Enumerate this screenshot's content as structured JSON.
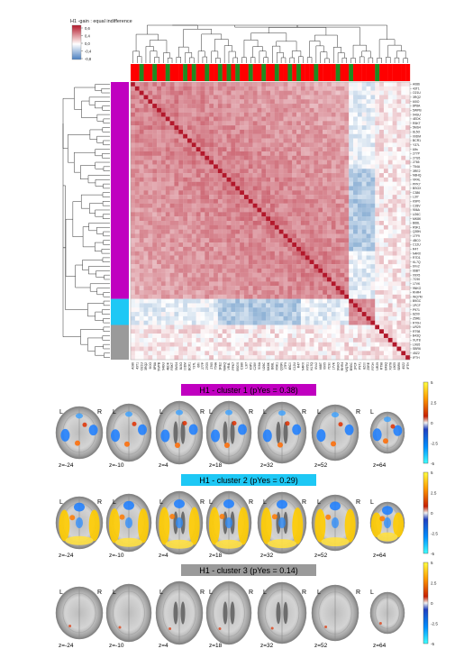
{
  "legend": {
    "title": "H1 -gain : equal indifference",
    "ticks": [
      "0,6",
      "0,4",
      "0,0",
      "-0,4",
      "-0,8"
    ]
  },
  "colors": {
    "pos": "#b2182b",
    "neg": "#2166ac",
    "cluster1": "#c000c0",
    "cluster2": "#1ec8f5",
    "cluster3": "#9a9a9a",
    "group_red": "#ff0000",
    "group_green": "#1f8a1f"
  },
  "row_labels": [
    "A086",
    "43T1",
    "O21U",
    "3RQ2",
    "6I0O",
    "8P8A",
    "5WPB",
    "94GU",
    "4EDK",
    "R5KT",
    "5MS4",
    "8L5O",
    "00DM",
    "BCR1",
    "Y37L",
    "6Ifn",
    "277P",
    "27G5",
    "2765",
    "T54A",
    "3RE2",
    "N8HQ",
    "VR4L",
    "PPK7",
    "BSGX",
    "C386",
    "L3I7",
    "K9P0",
    "C28V",
    "906A",
    "U26C",
    "MK8K",
    "B68L",
    "R9K1",
    "Q39N",
    "1TF9",
    "4BC0",
    "C12U",
    "R47",
    "N4RX",
    "R7D1",
    "KL7Q",
    "6Vx2",
    "66BT",
    "X9X5",
    "7C90",
    "17VK",
    "9NKO",
    "RHR4",
    "WQ7M",
    "B9GC",
    "1PCF",
    "P971",
    "8Z00",
    "Z5RE",
    "R70H",
    "UR29",
    "RT98",
    "B43Q",
    "XUT8",
    "L9G5",
    "SBR6",
    "45Z2",
    "IFTH"
  ],
  "col_groups": "RRGRRGRRGRRRGRGRRGRRGRGRGRRGRRGRRGRRGRGRRRGRRRRGRRGRRRRRGRRRRRRR",
  "panels": [
    {
      "title": "H1 - cluster 1 (pYes = 0.38)",
      "z": [
        "z=-24",
        "z=-10",
        "z=4",
        "z=18",
        "z=32",
        "z=52",
        "z=64"
      ],
      "cbar": [
        "5",
        "2.5",
        "0",
        "-2.5",
        "-5"
      ]
    },
    {
      "title": "H1 - cluster 2 (pYes = 0.29)",
      "z": [
        "z=-24",
        "z=-10",
        "z=4",
        "z=18",
        "z=32",
        "z=52",
        "z=64"
      ],
      "cbar": [
        "5",
        "2.5",
        "0",
        "-2.5",
        "-5"
      ]
    },
    {
      "title": "H1 - cluster 3 (pYes = 0.14)",
      "z": [
        "z=-24",
        "z=-10",
        "z=4",
        "z=18",
        "z=32",
        "z=52",
        "z=64"
      ],
      "cbar": [
        "5",
        "2.5",
        "0",
        "-2.5",
        "-5"
      ]
    }
  ],
  "orient": {
    "left": "L",
    "right": "R"
  }
}
